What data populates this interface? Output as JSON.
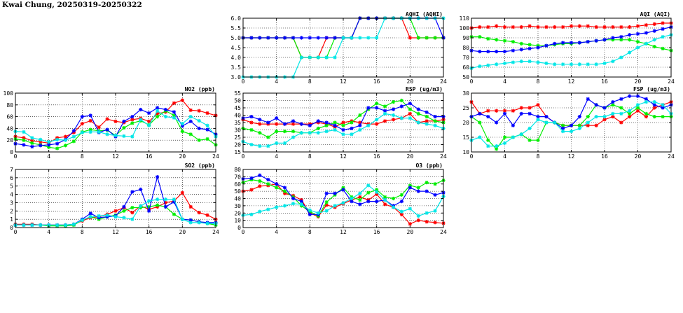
{
  "page_title": "Kwai Chung, 20250319-20250322",
  "series_colors": [
    "#ff0000",
    "#00ee00",
    "#0000ff",
    "#00e6e6"
  ],
  "chart_data": [
    {
      "id": "no2",
      "type": "line",
      "title": "NO2 (ppb)",
      "xlim": [
        0,
        24
      ],
      "ylim": [
        0,
        100
      ],
      "xticks": [
        "0",
        "4",
        "8",
        "12",
        "16",
        "20",
        "24"
      ],
      "yticks": [
        "0",
        "20",
        "40",
        "60",
        "80",
        "100"
      ],
      "grid": true,
      "series": [
        {
          "color": "#ff0000",
          "values": [
            26,
            24,
            19,
            17,
            15,
            24,
            26,
            33,
            48,
            53,
            42,
            56,
            52,
            50,
            55,
            57,
            52,
            65,
            68,
            83,
            88,
            71,
            70,
            66,
            62
          ]
        },
        {
          "color": "#00ee00",
          "values": [
            22,
            20,
            15,
            12,
            8,
            6,
            11,
            18,
            34,
            38,
            36,
            37,
            28,
            41,
            49,
            53,
            46,
            60,
            70,
            62,
            35,
            30,
            20,
            22,
            12
          ]
        },
        {
          "color": "#0000ff",
          "values": [
            14,
            12,
            9,
            11,
            12,
            14,
            21,
            36,
            60,
            62,
            33,
            38,
            26,
            52,
            60,
            72,
            66,
            75,
            72,
            68,
            44,
            52,
            40,
            38,
            30
          ]
        },
        {
          "color": "#00e6e6",
          "values": [
            35,
            34,
            24,
            21,
            17,
            21,
            20,
            26,
            33,
            34,
            34,
            30,
            28,
            27,
            26,
            55,
            45,
            70,
            60,
            58,
            48,
            60,
            53,
            45,
            26
          ]
        }
      ]
    },
    {
      "id": "so2",
      "type": "line",
      "title": "SO2 (ppb)",
      "xlim": [
        0,
        24
      ],
      "ylim": [
        0,
        7
      ],
      "xticks": [
        "0",
        "4",
        "8",
        "12",
        "16",
        "20",
        "24"
      ],
      "yticks": [
        "0",
        "1",
        "2",
        "3",
        "4",
        "5",
        "6",
        "7"
      ],
      "grid": true,
      "series": [
        {
          "color": "#ff0000",
          "values": [
            0.4,
            0.4,
            0.4,
            0.3,
            0.3,
            0.3,
            0.3,
            0.4,
            0.8,
            1.2,
            1.3,
            1.6,
            2.0,
            2.4,
            1.8,
            2.6,
            2.2,
            2.5,
            3.0,
            3.2,
            4.2,
            2.5,
            1.8,
            1.5,
            1.0
          ]
        },
        {
          "color": "#00ee00",
          "values": [
            0.3,
            0.3,
            0.3,
            0.3,
            0.2,
            0.2,
            0.2,
            0.3,
            0.9,
            1.3,
            1.0,
            1.3,
            1.5,
            2.0,
            2.4,
            2.4,
            2.5,
            2.7,
            2.5,
            1.6,
            1.0,
            0.9,
            0.7,
            0.5,
            0.3
          ]
        },
        {
          "color": "#0000ff",
          "values": [
            0.3,
            0.3,
            0.3,
            0.3,
            0.3,
            0.3,
            0.3,
            0.4,
            1.0,
            1.7,
            1.2,
            1.3,
            1.4,
            2.5,
            4.3,
            4.6,
            2.0,
            6.1,
            2.5,
            3.1,
            1.0,
            0.9,
            0.7,
            0.6,
            0.6
          ]
        },
        {
          "color": "#00e6e6",
          "values": [
            0.3,
            0.3,
            0.3,
            0.3,
            0.3,
            0.3,
            0.3,
            0.4,
            0.9,
            1.3,
            1.4,
            1.5,
            1.3,
            1.2,
            1.0,
            2.6,
            3.2,
            3.4,
            3.4,
            3.4,
            1.0,
            0.6,
            0.6,
            0.5,
            0.5
          ]
        }
      ]
    },
    {
      "id": "aqhi",
      "type": "line",
      "title": "AQHI (AQHI)",
      "xlim": [
        0,
        24
      ],
      "ylim": [
        3.0,
        6.0
      ],
      "xticks": [
        "0",
        "4",
        "8",
        "12",
        "16",
        "20",
        "24"
      ],
      "yticks": [
        "3.0",
        "3.5",
        "4.0",
        "4.5",
        "5.0",
        "5.5",
        "6.0"
      ],
      "grid": true,
      "series": [
        {
          "color": "#ff0000",
          "values": [
            5,
            5,
            5,
            5,
            5,
            5,
            5,
            4,
            4,
            4,
            5,
            5,
            5,
            5,
            6,
            6,
            6,
            6,
            6,
            6,
            5,
            5,
            5,
            5,
            5
          ]
        },
        {
          "color": "#00ee00",
          "values": [
            5,
            5,
            5,
            5,
            5,
            5,
            5,
            4,
            4,
            4,
            4,
            5,
            5,
            5,
            6,
            6,
            6,
            6,
            6,
            6,
            6,
            5,
            5,
            5,
            5
          ]
        },
        {
          "color": "#0000ff",
          "values": [
            5,
            5,
            5,
            5,
            5,
            5,
            5,
            5,
            5,
            5,
            5,
            5,
            5,
            5,
            6,
            6,
            6,
            6,
            6,
            6,
            6,
            6,
            6,
            6,
            5
          ]
        },
        {
          "color": "#00e6e6",
          "values": [
            3,
            3,
            3,
            3,
            3,
            3,
            3,
            4,
            4,
            4,
            4,
            4,
            5,
            5,
            5,
            5,
            5,
            6,
            6,
            6,
            6,
            6,
            6,
            6,
            6
          ]
        }
      ]
    },
    {
      "id": "rsp",
      "type": "line",
      "title": "RSP (ug/m3)",
      "xlim": [
        0,
        24
      ],
      "ylim": [
        15,
        55
      ],
      "xticks": [
        "0",
        "4",
        "8",
        "12",
        "16",
        "20",
        "24"
      ],
      "yticks": [
        "15",
        "20",
        "25",
        "30",
        "35",
        "40",
        "45",
        "50",
        "55"
      ],
      "grid": true,
      "series": [
        {
          "color": "#ff0000",
          "values": [
            37,
            35,
            34,
            34,
            34,
            34,
            34,
            34,
            34,
            35,
            34,
            32,
            35,
            36,
            35,
            34,
            34,
            36,
            37,
            38,
            41,
            35,
            36,
            36,
            37
          ]
        },
        {
          "color": "#00ee00",
          "values": [
            31,
            30,
            28,
            25,
            29,
            29,
            29,
            28,
            28,
            31,
            33,
            35,
            33,
            35,
            40,
            44,
            48,
            46,
            49,
            50,
            44,
            41,
            39,
            36,
            35
          ]
        },
        {
          "color": "#0000ff",
          "values": [
            38,
            39,
            37,
            35,
            38,
            34,
            36,
            34,
            33,
            36,
            35,
            33,
            30,
            31,
            33,
            45,
            45,
            43,
            44,
            46,
            48,
            44,
            42,
            39,
            39
          ]
        },
        {
          "color": "#00e6e6",
          "values": [
            22,
            20,
            19,
            19,
            21,
            21,
            25,
            28,
            28,
            28,
            29,
            30,
            27,
            27,
            30,
            33,
            37,
            41,
            40,
            38,
            38,
            35,
            34,
            33,
            31
          ]
        }
      ]
    },
    {
      "id": "o3",
      "type": "line",
      "title": "O3 (ppb)",
      "xlim": [
        0,
        24
      ],
      "ylim": [
        0,
        80
      ],
      "xticks": [
        "0",
        "4",
        "8",
        "12",
        "16",
        "20",
        "24"
      ],
      "yticks": [
        "0",
        "10",
        "20",
        "30",
        "40",
        "50",
        "60",
        "70",
        "80"
      ],
      "grid": true,
      "series": [
        {
          "color": "#ff0000",
          "values": [
            50,
            52,
            57,
            58,
            60,
            47,
            44,
            38,
            20,
            15,
            31,
            28,
            33,
            38,
            42,
            38,
            46,
            32,
            28,
            18,
            5,
            10,
            8,
            7,
            6
          ]
        },
        {
          "color": "#00ee00",
          "values": [
            62,
            66,
            64,
            60,
            55,
            50,
            42,
            30,
            22,
            16,
            35,
            45,
            55,
            42,
            38,
            48,
            52,
            42,
            40,
            45,
            58,
            55,
            62,
            60,
            65
          ]
        },
        {
          "color": "#0000ff",
          "values": [
            67,
            68,
            72,
            66,
            60,
            55,
            40,
            36,
            18,
            18,
            47,
            47,
            52,
            36,
            32,
            36,
            36,
            38,
            30,
            36,
            55,
            50,
            50,
            45,
            48
          ]
        },
        {
          "color": "#00e6e6",
          "values": [
            17,
            18,
            22,
            25,
            28,
            30,
            33,
            32,
            24,
            20,
            23,
            30,
            34,
            40,
            47,
            58,
            49,
            38,
            28,
            22,
            26,
            16,
            20,
            23,
            43
          ]
        }
      ]
    },
    {
      "id": "aqi",
      "type": "line",
      "title": "AQI (AQI)",
      "xlim": [
        0,
        24
      ],
      "ylim": [
        50,
        110
      ],
      "xticks": [
        "0",
        "4",
        "8",
        "12",
        "16",
        "20",
        "24"
      ],
      "yticks": [
        "50",
        "60",
        "70",
        "80",
        "90",
        "100",
        "110"
      ],
      "grid": true,
      "series": [
        {
          "color": "#ff0000",
          "values": [
            100,
            101,
            101,
            102,
            101,
            101,
            101,
            102,
            101,
            101,
            101,
            101,
            102,
            102,
            102,
            101,
            101,
            101,
            101,
            101,
            102,
            103,
            104,
            105,
            105
          ]
        },
        {
          "color": "#00ee00",
          "values": [
            91,
            91,
            89,
            88,
            87,
            86,
            84,
            83,
            82,
            82,
            83,
            84,
            84,
            85,
            86,
            87,
            88,
            88,
            88,
            88,
            86,
            84,
            81,
            79,
            77
          ]
        },
        {
          "color": "#0000ff",
          "values": [
            77,
            76,
            76,
            76,
            76,
            77,
            78,
            79,
            80,
            82,
            84,
            85,
            85,
            85,
            86,
            87,
            88,
            90,
            91,
            93,
            94,
            95,
            97,
            99,
            101
          ]
        },
        {
          "color": "#00e6e6",
          "values": [
            59,
            61,
            62,
            63,
            64,
            65,
            66,
            66,
            65,
            64,
            63,
            63,
            63,
            63,
            63,
            63,
            64,
            66,
            70,
            75,
            80,
            84,
            88,
            91,
            93
          ]
        }
      ]
    },
    {
      "id": "fsp",
      "type": "line",
      "title": "FSP (ug/m3)",
      "xlim": [
        0,
        24
      ],
      "ylim": [
        10,
        30
      ],
      "xticks": [
        "0",
        "4",
        "8",
        "12",
        "16",
        "20",
        "24"
      ],
      "yticks": [
        "10",
        "15",
        "20",
        "25",
        "30"
      ],
      "grid": true,
      "series": [
        {
          "color": "#ff0000",
          "values": [
            27,
            23,
            24,
            24,
            24,
            24,
            25,
            25,
            26,
            22,
            20,
            19,
            19,
            19,
            19,
            19,
            21,
            22,
            20,
            22,
            24,
            22,
            25,
            26,
            27
          ]
        },
        {
          "color": "#00ee00",
          "values": [
            22,
            20,
            14,
            11,
            15,
            15,
            16,
            14,
            14,
            20,
            20,
            19,
            19,
            19,
            22,
            26,
            25,
            26,
            25,
            23,
            25,
            23,
            22,
            22,
            22
          ]
        },
        {
          "color": "#0000ff",
          "values": [
            22,
            23,
            22,
            20,
            23,
            19,
            23,
            23,
            22,
            22,
            20,
            18,
            19,
            22,
            28,
            26,
            25,
            27,
            28,
            29,
            29,
            28,
            26,
            25,
            26
          ]
        },
        {
          "color": "#00e6e6",
          "values": [
            14,
            15,
            12,
            12,
            13,
            15,
            16,
            18,
            21,
            20,
            20,
            17,
            17,
            18,
            20,
            22,
            22,
            23,
            23,
            24,
            26,
            27,
            27,
            26,
            23
          ]
        }
      ]
    }
  ]
}
